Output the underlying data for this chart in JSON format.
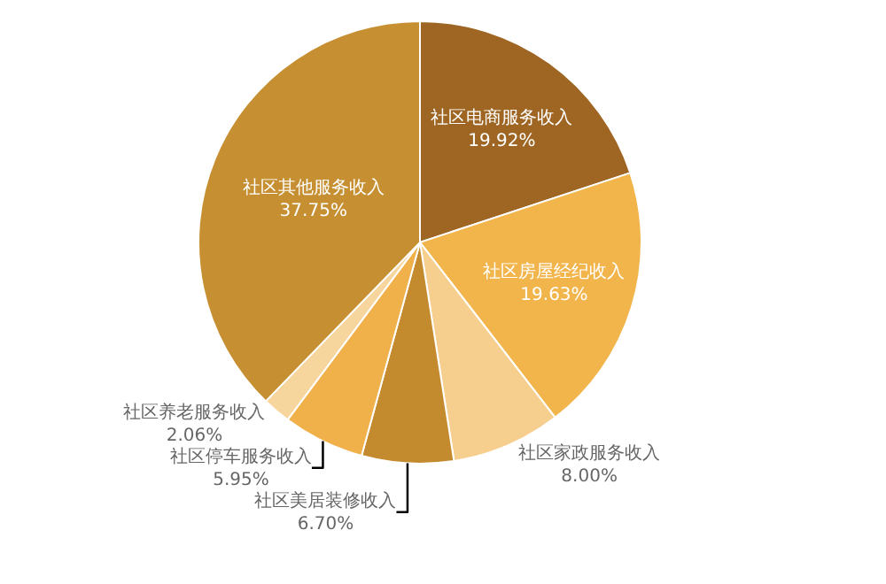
{
  "chart_data": {
    "type": "pie",
    "categories": [
      "社区电商服务收入",
      "社区房屋经纪收入",
      "社区家政服务收入",
      "社区美居装修收入",
      "社区停车服务收入",
      "社区养老服务收入",
      "社区其他服务收入"
    ],
    "values": [
      19.92,
      19.63,
      8.0,
      6.7,
      5.95,
      2.06,
      37.75
    ],
    "value_labels": [
      "19.92%",
      "19.63%",
      "8.00%",
      "6.70%",
      "5.95%",
      "2.06%",
      "37.75%"
    ],
    "colors": [
      "#9e6523",
      "#f2b54c",
      "#f6cf8e",
      "#c48a2e",
      "#f0b04a",
      "#f7d69e",
      "#c68f31"
    ],
    "legend": false
  }
}
